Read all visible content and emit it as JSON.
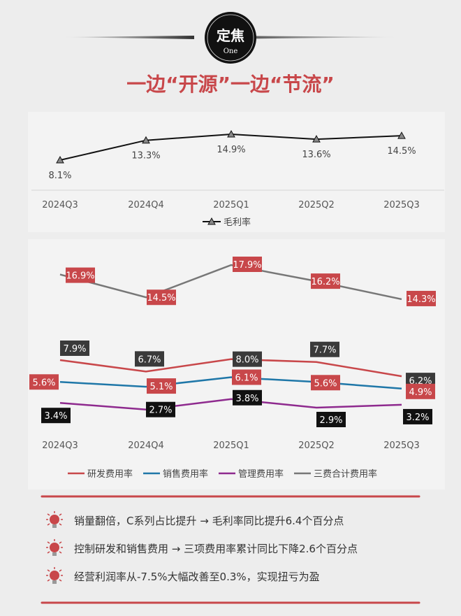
{
  "header": {
    "badge_main": "定焦",
    "badge_sub": "One",
    "title": "一边“开源”一边“节流”"
  },
  "colors": {
    "accent_red": "#c8474a",
    "gross": "#111111",
    "rd": "#c8474a",
    "sales": "#1f77a8",
    "admin": "#8e2a8e",
    "total": "#777777",
    "label_dark": "#3a3a3a",
    "label_black": "#111111"
  },
  "chart_data": [
    {
      "type": "line",
      "categories": [
        "2024Q3",
        "2024Q4",
        "2025Q1",
        "2025Q2",
        "2025Q3"
      ],
      "series": [
        {
          "name": "毛利率",
          "values": [
            8.1,
            13.3,
            14.9,
            13.6,
            14.5
          ],
          "labels": [
            "8.1%",
            "13.3%",
            "14.9%",
            "13.6%",
            "14.5%"
          ]
        }
      ],
      "legend": "bottom",
      "unit": "%"
    },
    {
      "type": "line",
      "categories": [
        "2024Q3",
        "2024Q4",
        "2025Q1",
        "2025Q2",
        "2025Q3"
      ],
      "series": [
        {
          "name": "研发费用率",
          "values": [
            7.9,
            6.7,
            8.0,
            7.7,
            6.2
          ],
          "labels": [
            "7.9%",
            "6.7%",
            "8.0%",
            "7.7%",
            "6.2%"
          ]
        },
        {
          "name": "销售费用率",
          "values": [
            5.6,
            5.1,
            6.1,
            5.6,
            4.9
          ],
          "labels": [
            "5.6%",
            "5.1%",
            "6.1%",
            "5.6%",
            "4.9%"
          ]
        },
        {
          "name": "管理费用率",
          "values": [
            3.4,
            2.7,
            3.8,
            2.9,
            3.2
          ],
          "labels": [
            "3.4%",
            "2.7%",
            "3.8%",
            "2.9%",
            "3.2%"
          ]
        },
        {
          "name": "三费合计费用率",
          "values": [
            16.9,
            14.5,
            17.9,
            16.2,
            14.3
          ],
          "labels": [
            "16.9%",
            "14.5%",
            "17.9%",
            "16.2%",
            "14.3%"
          ]
        }
      ],
      "legend": "bottom",
      "unit": "%"
    }
  ],
  "bullets": [
    "销量翻倍，C系列占比提升 → 毛利率同比提升6.4个百分点",
    "控制研发和销售费用 → 三项费用率累计同比下降2.6个百分点",
    "经营利润率从-7.5%大幅改善至0.3%，实现扭亏为盈"
  ]
}
